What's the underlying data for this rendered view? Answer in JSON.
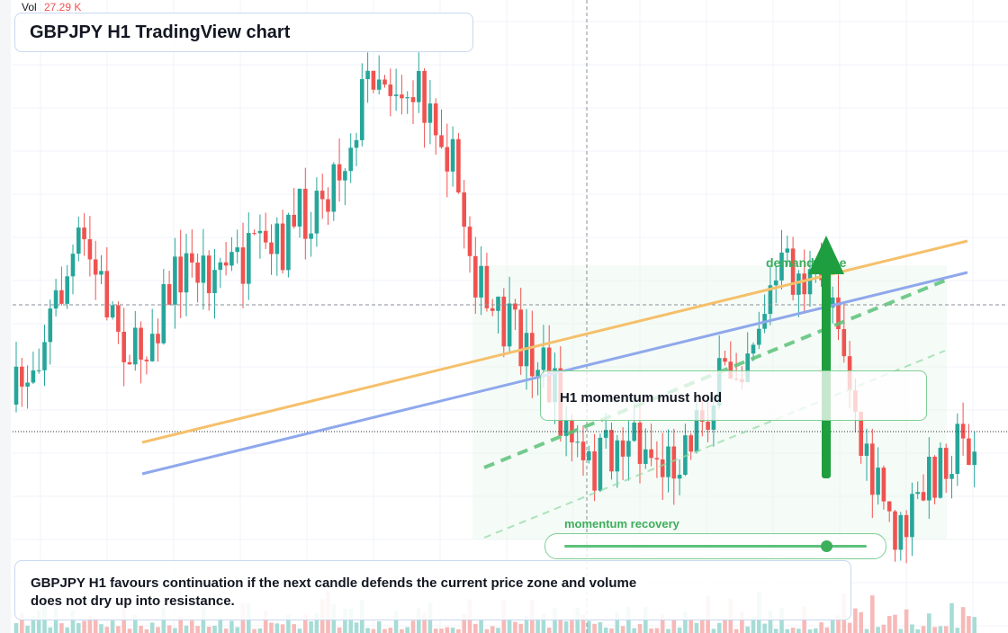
{
  "header": {
    "vol_label": "Vol",
    "vol_value": "27.29 K",
    "title": "GBPJPY H1 TradingView chart"
  },
  "annotations": {
    "momentum_box": "H1 momentum must hold",
    "zone_label": "demand zone",
    "slider_label": "momentum recovery"
  },
  "caption": "GBPJPY H1 favours continuation if the next candle defends the current price zone and volume does not dry up into resistance."
}
